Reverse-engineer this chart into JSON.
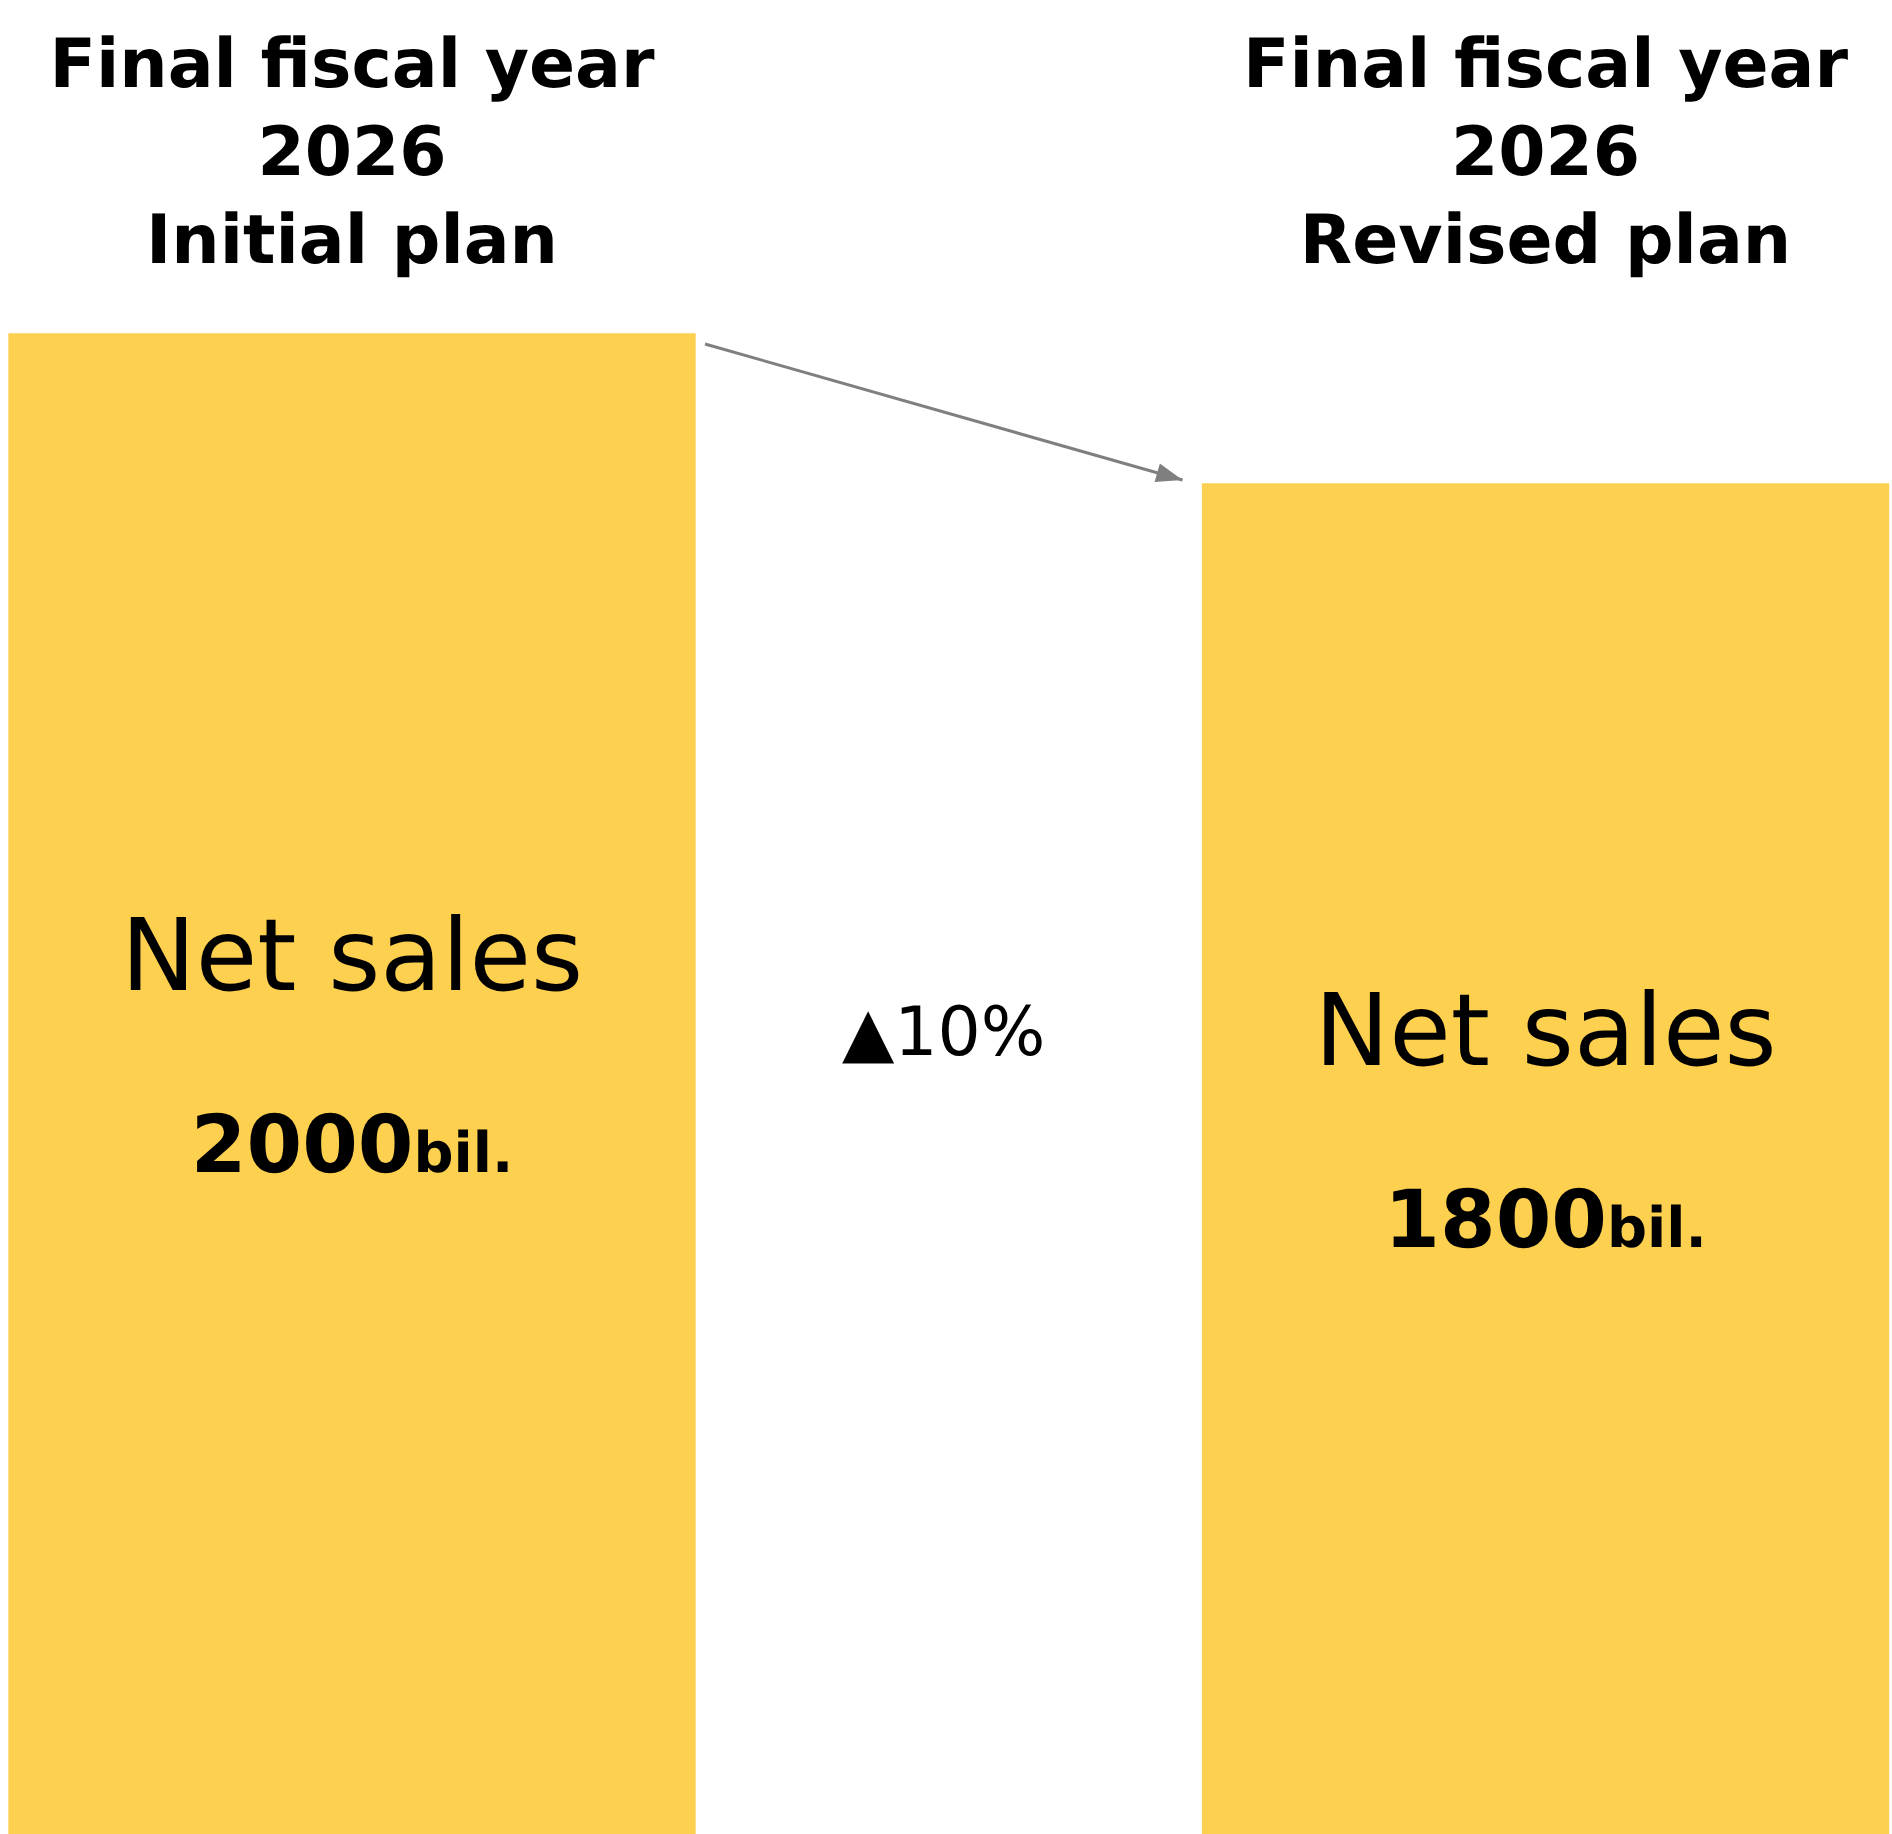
{
  "chart_data": {
    "type": "bar",
    "categories": [
      "Final fiscal year\n2026\nInitial plan",
      "Final fiscal year\n2026\nRevised plan"
    ],
    "series": [
      {
        "name": "Net sales",
        "color": "#fed04f",
        "values": [
          2000,
          1800
        ],
        "value_labels": [
          "2000bil.",
          "1800bil."
        ]
      }
    ],
    "ylim": [
      0,
      2000
    ],
    "grid": false,
    "legend": false,
    "tick_labels": "x",
    "annotations": [
      "▲10%"
    ]
  }
}
